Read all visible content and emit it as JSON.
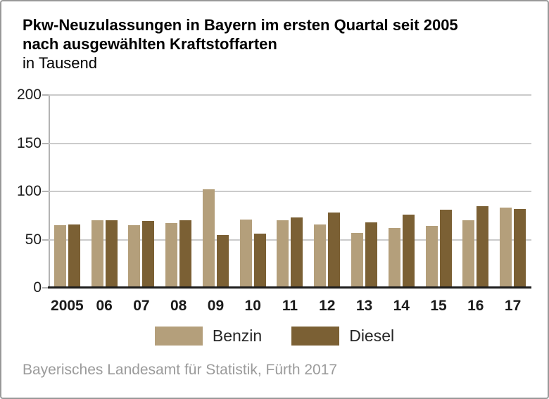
{
  "header": {
    "title_line1": "Pkw-Neuzulassungen in Bayern im ersten Quartal seit 2005",
    "title_line2": "nach ausgewählten Kraftstoffarten",
    "subtitle": "in Tausend"
  },
  "footer": {
    "source": "Bayerisches Landesamt für Statistik, Fürth 2017"
  },
  "colors": {
    "benzin": "#b49f7b",
    "diesel": "#7b6034",
    "gridline": "#cbcbcb",
    "axis": "#b3b3b3",
    "baseline": "#1c1c1c",
    "frame_border": "#999999",
    "source_text": "#9b9b9b"
  },
  "chart_data": {
    "type": "bar",
    "title": "Pkw-Neuzulassungen in Bayern im ersten Quartal seit 2005 nach ausgewählten Kraftstoffarten",
    "subtitle": "in Tausend",
    "xlabel": "",
    "ylabel": "in Tausend",
    "categories": [
      "2005",
      "06",
      "07",
      "08",
      "09",
      "10",
      "11",
      "12",
      "13",
      "14",
      "15",
      "16",
      "17"
    ],
    "series": [
      {
        "name": "Benzin",
        "color": "#b49f7b",
        "values": [
          65,
          70,
          65,
          67,
          102,
          71,
          70,
          66,
          57,
          62,
          64,
          70,
          83
        ]
      },
      {
        "name": "Diesel",
        "color": "#7b6034",
        "values": [
          66,
          70,
          69,
          70,
          55,
          56,
          73,
          78,
          68,
          76,
          81,
          85,
          82
        ]
      }
    ],
    "ylim": [
      0,
      200
    ],
    "yticks": [
      0,
      50,
      100,
      150,
      200
    ],
    "grid": true,
    "legend_position": "bottom",
    "source": "Bayerisches Landesamt für Statistik, Fürth 2017"
  }
}
